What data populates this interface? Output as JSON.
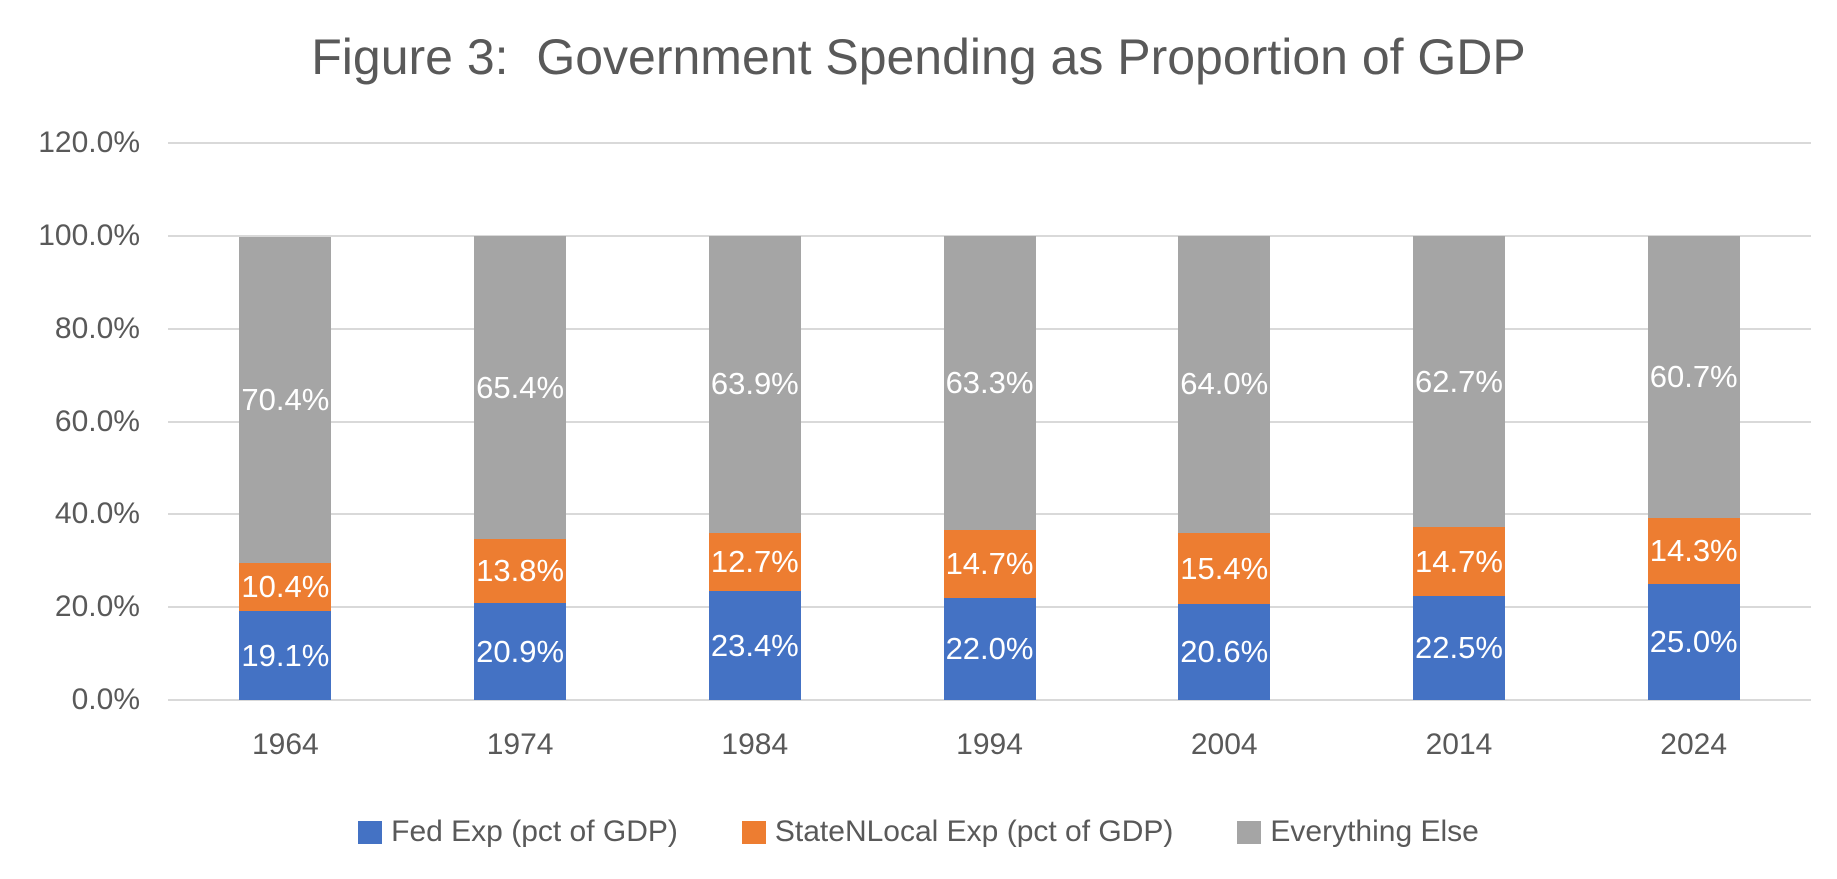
{
  "chart_data": {
    "type": "bar",
    "variant": "stacked-column",
    "title": "Figure 3:  Government Spending as Proportion of GDP",
    "categories": [
      "1964",
      "1974",
      "1984",
      "1994",
      "2004",
      "2014",
      "2024"
    ],
    "series": [
      {
        "name": "Fed Exp (pct of GDP)",
        "color": "#4472C4",
        "values": [
          19.1,
          20.9,
          23.4,
          22.0,
          20.6,
          22.5,
          25.0
        ]
      },
      {
        "name": "StateNLocal Exp (pct of GDP)",
        "color": "#ED7D31",
        "values": [
          10.4,
          13.8,
          12.7,
          14.7,
          15.4,
          14.7,
          14.3
        ]
      },
      {
        "name": "Everything Else",
        "color": "#A5A5A5",
        "values": [
          70.4,
          65.4,
          63.9,
          63.3,
          64.0,
          62.7,
          60.7
        ]
      }
    ],
    "xlabel": "",
    "ylabel": "",
    "ylim": [
      0,
      120
    ],
    "y_tick_values": [
      120,
      100,
      80,
      60,
      40,
      20,
      0
    ],
    "y_ticks": [
      "120.0%",
      "100.0%",
      "80.0%",
      "60.0%",
      "40.0%",
      "20.0%",
      "0.0%"
    ],
    "data_label_format": "one-decimal-percent-white-centered",
    "legend_position": "bottom",
    "grid": "horizontal"
  },
  "style": {
    "text_color": "#595959",
    "gridline_color": "#D9D9D9",
    "background": "#FFFFFF",
    "data_label_color": "#FFFFFF"
  }
}
